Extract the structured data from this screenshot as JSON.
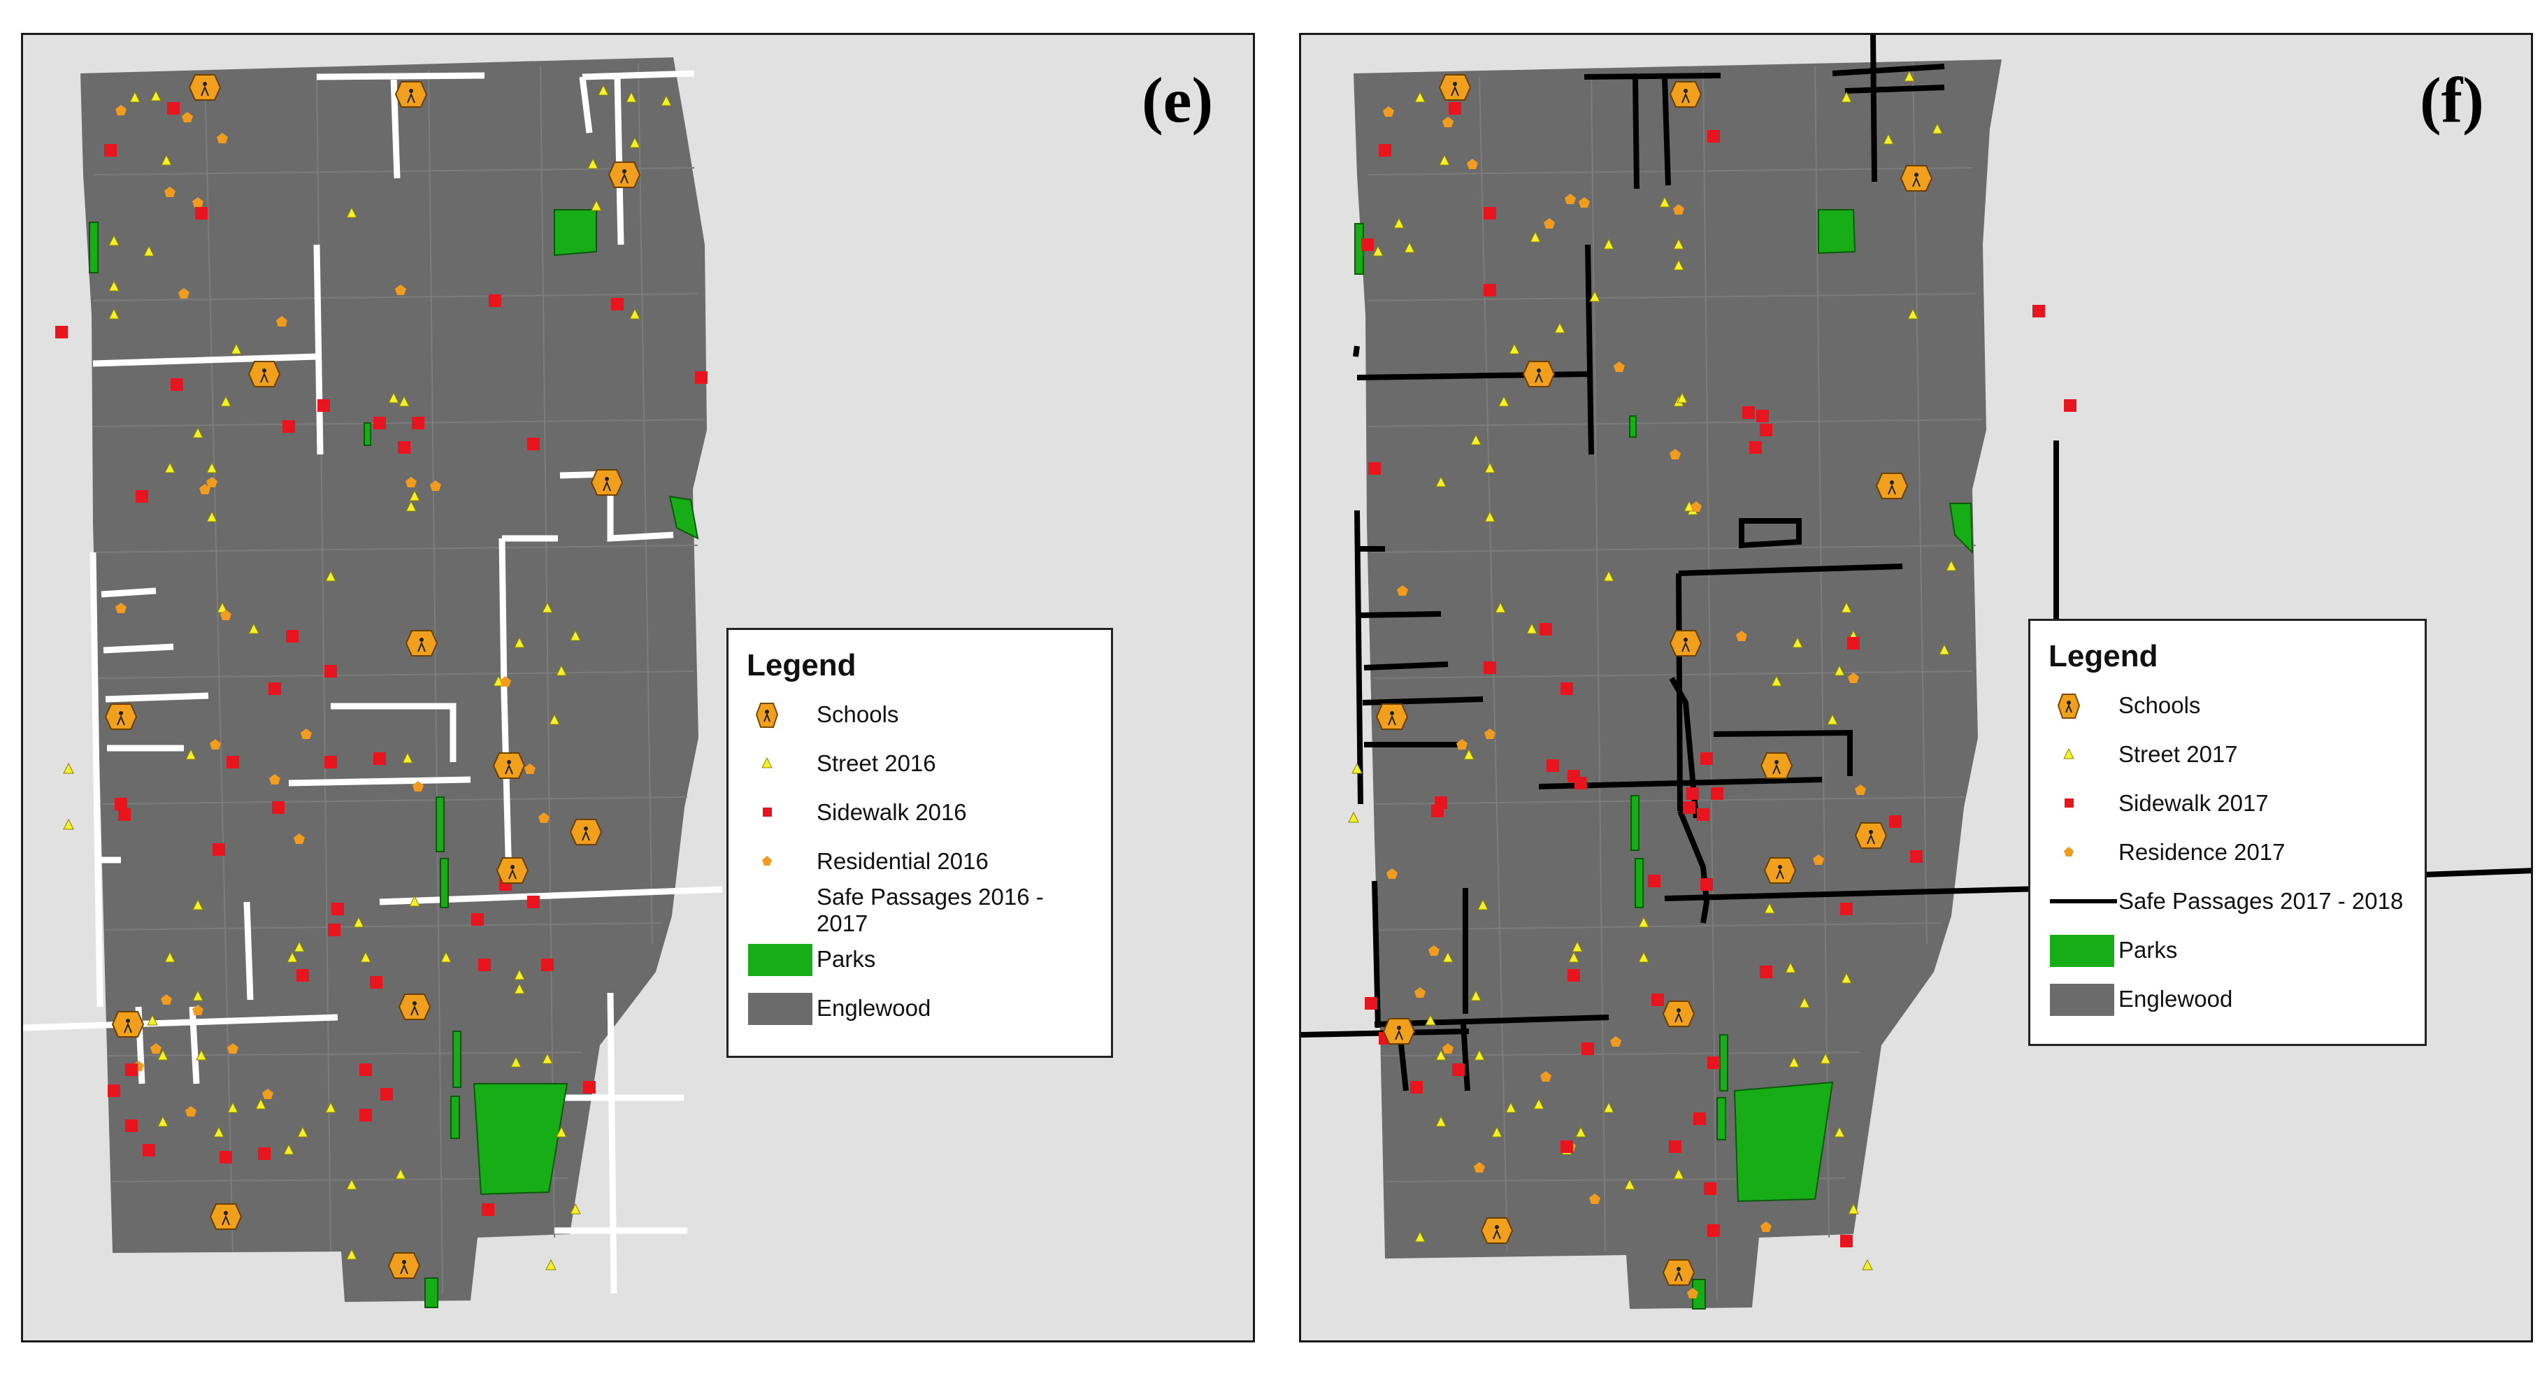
{
  "colors": {
    "background": "#e1e1e1",
    "englewood": "#6b6b6b",
    "street_grid": "#7c7c7c",
    "parks": "#17ad17",
    "street": "#f6ef2a",
    "sidewalk": "#e8141e",
    "residential": "#f19c1f",
    "school": "#f1a01d",
    "safe_passages_2016": "#ffffff",
    "safe_passages_2017": "#000000"
  },
  "panels": [
    {
      "label": "(e)",
      "legend": {
        "title": "Legend",
        "items": [
          {
            "label": "Schools",
            "icon": "school-icon"
          },
          {
            "label": "Street 2016",
            "icon": "triangle-icon"
          },
          {
            "label": "Sidewalk 2016",
            "icon": "square-icon"
          },
          {
            "label": "Residential 2016",
            "icon": "pentagon-icon"
          },
          {
            "label": "Safe Passages 2016 - 2017",
            "icon": "line-icon"
          },
          {
            "label": "Parks",
            "icon": "park-swatch-icon"
          },
          {
            "label": "Englewood",
            "icon": "area-swatch-icon"
          }
        ]
      }
    },
    {
      "label": "(f)",
      "legend": {
        "title": "Legend",
        "items": [
          {
            "label": "Schools",
            "icon": "school-icon"
          },
          {
            "label": "Street 2017",
            "icon": "triangle-icon"
          },
          {
            "label": "Sidewalk 2017",
            "icon": "square-icon"
          },
          {
            "label": "Residence 2017",
            "icon": "pentagon-icon"
          },
          {
            "label": "Safe Passages 2017 - 2018",
            "icon": "line-icon"
          },
          {
            "label": "Parks",
            "icon": "park-swatch-icon"
          },
          {
            "label": "Englewood",
            "icon": "area-swatch-icon"
          }
        ]
      }
    }
  ]
}
